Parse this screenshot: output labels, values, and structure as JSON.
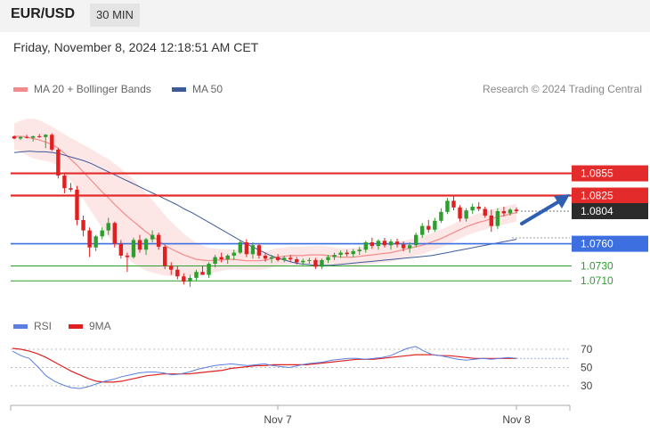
{
  "header": {
    "pair": "EUR/USD",
    "timeframe": "30 MIN"
  },
  "datetime": "Friday, November 8, 2024 12:18:51 AM CET",
  "legend_main": [
    {
      "label": "MA 20 + Bollinger Bands",
      "color": "#f28b8b"
    },
    {
      "label": "MA 50",
      "color": "#3d5a99"
    }
  ],
  "legend_rsi": [
    {
      "label": "RSI",
      "color": "#5b7fe0"
    },
    {
      "label": "9MA",
      "color": "#e02020"
    }
  ],
  "credit": "Research © 2024 Trading Central",
  "levels": [
    {
      "value": "1.0855",
      "kind": "resistance",
      "color": "#e32b2b",
      "label_bg": "#e32b2b",
      "label_color": "#ffffff",
      "price": 1.0855
    },
    {
      "value": "1.0825",
      "kind": "resistance",
      "color": "#e32b2b",
      "label_bg": "#e32b2b",
      "label_color": "#ffffff",
      "price": 1.0825
    },
    {
      "value": "1.0804",
      "kind": "last_price",
      "color": "#333333",
      "label_bg": "#2b2b2b",
      "label_color": "#ffffff",
      "price": 1.0804
    },
    {
      "value": "1.0760",
      "kind": "pivot",
      "color": "#3d6fe0",
      "label_bg": "#3d6fe0",
      "label_color": "#ffffff",
      "price": 1.076
    },
    {
      "value": "1.0730",
      "kind": "support",
      "color": "#2e9e2e",
      "label_bg": "transparent",
      "label_color": "#2e9e2e",
      "price": 1.073
    },
    {
      "value": "1.0710",
      "kind": "support",
      "color": "#2e9e2e",
      "label_bg": "transparent",
      "label_color": "#2e9e2e",
      "price": 1.071
    }
  ],
  "rsi_levels": [
    "70",
    "50",
    "30"
  ],
  "x_ticks": [
    "Nov 7",
    "Nov 8"
  ],
  "colors": {
    "up": "#2e9e2e",
    "down": "#e02020",
    "band": "#fde3e3",
    "ma20": "#f28b8b",
    "ma50": "#3d5a99",
    "arrow": "#2f5fb3"
  },
  "chart_data": {
    "type": "candlestick",
    "instrument": "EUR/USD",
    "interval": "30 MIN",
    "ylim": [
      1.0685,
      1.0935
    ],
    "x_ticks": [
      "Nov 7",
      "Nov 8"
    ],
    "series": [
      {
        "name": "MA 20 + Bollinger Bands",
        "values": [
          1.0905,
          1.0905,
          1.0904,
          1.0902,
          1.09,
          1.0897,
          1.0894,
          1.0889,
          1.0882,
          1.0874,
          1.0866,
          1.0857,
          1.0848,
          1.0839,
          1.083,
          1.0822,
          1.0813,
          1.0805,
          1.0797,
          1.079,
          1.0783,
          1.0776,
          1.077,
          1.0764,
          1.0758,
          1.0753,
          1.0749,
          1.0745,
          1.0742,
          1.0739,
          1.0738,
          1.0737,
          1.0738,
          1.0738,
          1.0739,
          1.0739,
          1.0738,
          1.0737,
          1.0737,
          1.0737,
          1.0738,
          1.074,
          1.0742,
          1.0743,
          1.0744,
          1.0744,
          1.0744,
          1.0745,
          1.0745,
          1.0745,
          1.0744,
          1.0743,
          1.0742,
          1.0742,
          1.0742,
          1.0743,
          1.0744,
          1.0745,
          1.0746,
          1.0747,
          1.0748,
          1.075,
          1.0752,
          1.0754,
          1.0756,
          1.0758,
          1.0761,
          1.0764,
          1.0767,
          1.0771,
          1.0775,
          1.0779,
          1.0783,
          1.0786,
          1.0789,
          1.0791,
          1.0794,
          1.0796,
          1.0798,
          1.08,
          1.0802
        ]
      },
      {
        "name": "MA 50",
        "values": [
          1.0883,
          1.0884,
          1.0885,
          1.0884,
          1.0884,
          1.0883,
          1.0881,
          1.0878,
          1.0875,
          1.0872,
          1.0868,
          1.0863,
          1.0858,
          1.0853,
          1.0848,
          1.0843,
          1.0838,
          1.0833,
          1.0828,
          1.0823,
          1.0818,
          1.0813,
          1.0807,
          1.0802,
          1.0796,
          1.079,
          1.0784,
          1.0778,
          1.0772,
          1.0766,
          1.076,
          1.0755,
          1.075,
          1.0745,
          1.0741,
          1.0738,
          1.0735,
          1.0733,
          1.0732,
          1.0731,
          1.0731,
          1.0731,
          1.0732,
          1.0733,
          1.0734,
          1.0735,
          1.0736,
          1.0737,
          1.0738,
          1.0739,
          1.074,
          1.0741,
          1.0742,
          1.0743,
          1.0744,
          1.0746,
          1.0748,
          1.075,
          1.0752,
          1.0754,
          1.0756,
          1.0758,
          1.076,
          1.0762,
          1.0764,
          1.0766
        ]
      },
      {
        "name": "RSI",
        "values": [
          68,
          63,
          60,
          51,
          41,
          35,
          31,
          28,
          27,
          29,
          32,
          35,
          37,
          40,
          42,
          44,
          45,
          45,
          44,
          42,
          43,
          45,
          48,
          50,
          52,
          53,
          54,
          53,
          52,
          53,
          54,
          52,
          51,
          50,
          52,
          54,
          55,
          56,
          58,
          59,
          60,
          60,
          59,
          60,
          61,
          63,
          67,
          71,
          73,
          68,
          64,
          63,
          61,
          59,
          58,
          59,
          60,
          59,
          60,
          61,
          60
        ]
      },
      {
        "name": "9MA",
        "values": [
          71,
          70,
          68,
          65,
          61,
          56,
          51,
          46,
          42,
          38,
          35,
          34,
          34,
          35,
          37,
          39,
          41,
          42,
          43,
          43,
          43,
          43,
          44,
          45,
          46,
          47,
          49,
          50,
          51,
          52,
          52,
          53,
          53,
          53,
          53,
          53,
          54,
          55,
          56,
          57,
          58,
          59,
          59,
          59,
          60,
          61,
          62,
          63,
          64,
          64,
          64,
          63,
          63,
          62,
          61,
          60,
          60,
          60,
          60,
          60,
          60
        ]
      }
    ],
    "candles": [
      [
        1.0905,
        1.0906,
        1.0901,
        1.0902
      ],
      [
        1.0902,
        1.0905,
        1.09,
        1.0904
      ],
      [
        1.0904,
        1.0907,
        1.0902,
        1.0903
      ],
      [
        1.0903,
        1.0906,
        1.0898,
        1.0905
      ],
      [
        1.0905,
        1.0908,
        1.0903,
        1.0904
      ],
      [
        1.0904,
        1.0908,
        1.0889,
        1.0907
      ],
      [
        1.0907,
        1.0909,
        1.0885,
        1.0887
      ],
      [
        1.0887,
        1.0889,
        1.0848,
        1.0852
      ],
      [
        1.0852,
        1.0856,
        1.0828,
        1.0835
      ],
      [
        1.0835,
        1.0842,
        1.083,
        1.0833
      ],
      [
        1.0833,
        1.0838,
        1.0785,
        1.0792
      ],
      [
        1.0792,
        1.0798,
        1.077,
        1.0778
      ],
      [
        1.0778,
        1.0782,
        1.0742,
        1.0755
      ],
      [
        1.0755,
        1.0772,
        1.075,
        1.077
      ],
      [
        1.077,
        1.0782,
        1.0766,
        1.0778
      ],
      [
        1.0778,
        1.0795,
        1.0772,
        1.0788
      ],
      [
        1.0788,
        1.079,
        1.0755,
        1.076
      ],
      [
        1.076,
        1.0765,
        1.074,
        1.0744
      ],
      [
        1.0744,
        1.0748,
        1.0722,
        1.0742
      ],
      [
        1.0742,
        1.0768,
        1.074,
        1.0765
      ],
      [
        1.0765,
        1.0772,
        1.0748,
        1.0752
      ],
      [
        1.0752,
        1.0768,
        1.0745,
        1.0766
      ],
      [
        1.0766,
        1.0778,
        1.0762,
        1.0772
      ],
      [
        1.0772,
        1.0775,
        1.0752,
        1.0756
      ],
      [
        1.0756,
        1.0758,
        1.0726,
        1.073
      ],
      [
        1.073,
        1.0735,
        1.0718,
        1.0725
      ],
      [
        1.0725,
        1.073,
        1.0712,
        1.0716
      ],
      [
        1.0716,
        1.072,
        1.0705,
        1.0709
      ],
      [
        1.0709,
        1.0718,
        1.0702,
        1.0714
      ],
      [
        1.0714,
        1.0725,
        1.071,
        1.0722
      ],
      [
        1.0722,
        1.073,
        1.0718,
        1.0718
      ],
      [
        1.0718,
        1.0735,
        1.0714,
        1.0733
      ],
      [
        1.0733,
        1.0745,
        1.0728,
        1.0742
      ],
      [
        1.0742,
        1.0748,
        1.0735,
        1.0739
      ],
      [
        1.0739,
        1.0746,
        1.0733,
        1.0744
      ],
      [
        1.0744,
        1.0752,
        1.0738,
        1.0748
      ],
      [
        1.0748,
        1.0765,
        1.0746,
        1.0762
      ],
      [
        1.0762,
        1.0766,
        1.0742,
        1.0746
      ],
      [
        1.0746,
        1.0762,
        1.074,
        1.0758
      ],
      [
        1.0758,
        1.076,
        1.074,
        1.0744
      ],
      [
        1.0744,
        1.0748,
        1.0736,
        1.074
      ],
      [
        1.074,
        1.0745,
        1.0734,
        1.0742
      ],
      [
        1.0742,
        1.0746,
        1.0736,
        1.0738
      ],
      [
        1.0738,
        1.0744,
        1.0735,
        1.0741
      ],
      [
        1.0741,
        1.0745,
        1.0736,
        1.0739
      ],
      [
        1.0739,
        1.0742,
        1.0732,
        1.0735
      ],
      [
        1.0735,
        1.074,
        1.0731,
        1.0737
      ],
      [
        1.0737,
        1.0741,
        1.0733,
        1.0738
      ],
      [
        1.0738,
        1.0741,
        1.0726,
        1.0729
      ],
      [
        1.0729,
        1.074,
        1.0726,
        1.0738
      ],
      [
        1.0738,
        1.0745,
        1.0734,
        1.0742
      ],
      [
        1.0742,
        1.0748,
        1.0738,
        1.0745
      ],
      [
        1.0745,
        1.0751,
        1.0741,
        1.0748
      ],
      [
        1.0748,
        1.0752,
        1.0743,
        1.0746
      ],
      [
        1.0746,
        1.0753,
        1.0742,
        1.075
      ],
      [
        1.075,
        1.0756,
        1.0745,
        1.0752
      ],
      [
        1.0752,
        1.0764,
        1.0748,
        1.0762
      ],
      [
        1.0762,
        1.0768,
        1.0753,
        1.0757
      ],
      [
        1.0757,
        1.0766,
        1.0752,
        1.0764
      ],
      [
        1.0764,
        1.0768,
        1.0755,
        1.0758
      ],
      [
        1.0758,
        1.0766,
        1.0752,
        1.0763
      ],
      [
        1.0763,
        1.0767,
        1.0755,
        1.0759
      ],
      [
        1.0759,
        1.0763,
        1.075,
        1.0754
      ],
      [
        1.0754,
        1.0762,
        1.0748,
        1.0758
      ],
      [
        1.0758,
        1.0775,
        1.0755,
        1.0772
      ],
      [
        1.0772,
        1.0788,
        1.0768,
        1.0784
      ],
      [
        1.0784,
        1.0792,
        1.0775,
        1.0779
      ],
      [
        1.0779,
        1.0795,
        1.0776,
        1.0791
      ],
      [
        1.0791,
        1.0808,
        1.0788,
        1.0803
      ],
      [
        1.0803,
        1.0822,
        1.08,
        1.0818
      ],
      [
        1.0818,
        1.0825,
        1.0805,
        1.0809
      ],
      [
        1.0809,
        1.0812,
        1.079,
        1.0794
      ],
      [
        1.0794,
        1.0808,
        1.079,
        1.0805
      ],
      [
        1.0805,
        1.0814,
        1.08,
        1.081
      ],
      [
        1.081,
        1.0816,
        1.0804,
        1.0807
      ],
      [
        1.0807,
        1.081,
        1.0795,
        1.0798
      ],
      [
        1.0798,
        1.0806,
        1.0776,
        1.0784
      ],
      [
        1.0784,
        1.0808,
        1.078,
        1.0804
      ],
      [
        1.0804,
        1.081,
        1.0797,
        1.0801
      ],
      [
        1.0801,
        1.0808,
        1.0798,
        1.0806
      ],
      [
        1.0806,
        1.0809,
        1.0801,
        1.0804
      ]
    ]
  }
}
